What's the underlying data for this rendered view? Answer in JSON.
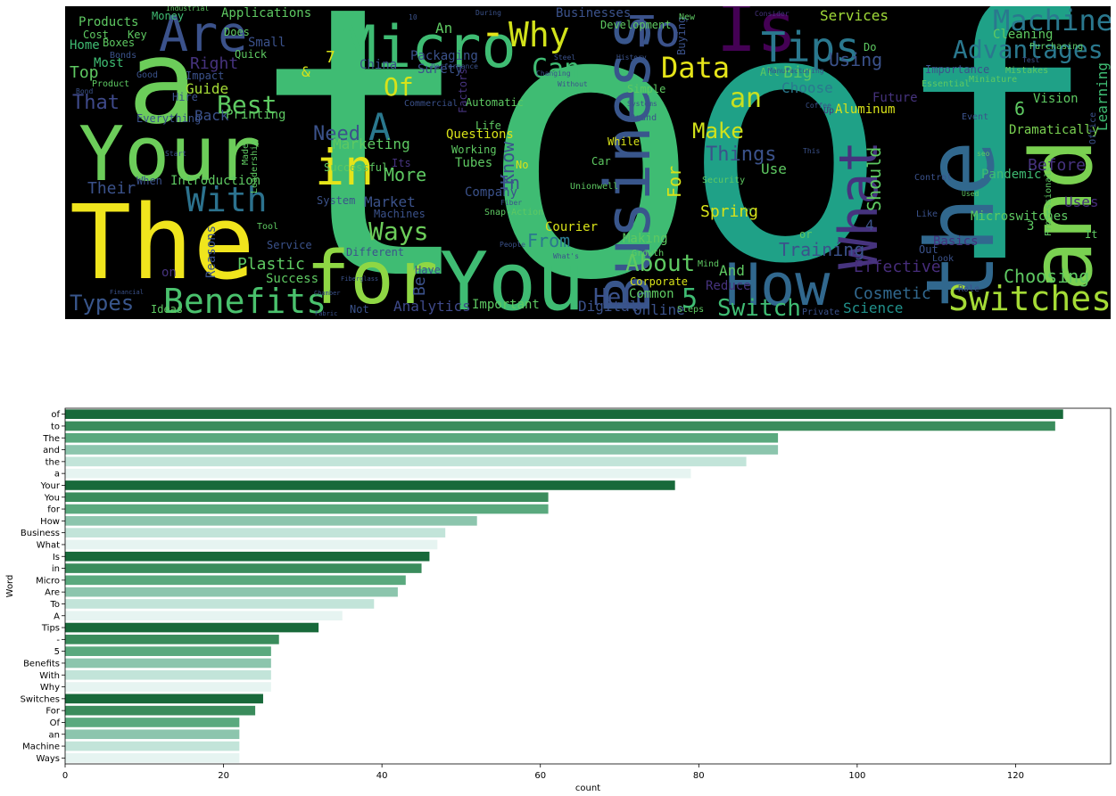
{
  "wordcloud": {
    "words": [
      {
        "text": "to",
        "color": "#3fbc73"
      },
      {
        "text": "of",
        "color": "#1fa187"
      },
      {
        "text": "The",
        "color": "#f0e51d"
      },
      {
        "text": "a",
        "color": "#6ccd5a"
      },
      {
        "text": "Your",
        "color": "#6ccd5a"
      },
      {
        "text": "and",
        "color": "#7ad151"
      },
      {
        "text": "the",
        "color": "#31688e"
      },
      {
        "text": "for",
        "color": "#8fd744"
      },
      {
        "text": "You",
        "color": "#3fbc73"
      },
      {
        "text": "How",
        "color": "#31688e"
      },
      {
        "text": "Business",
        "color": "#39568c"
      },
      {
        "text": "What",
        "color": "#46337e"
      },
      {
        "text": "Is",
        "color": "#440154"
      },
      {
        "text": "in",
        "color": "#e5e419"
      },
      {
        "text": "Micro",
        "color": "#3fbc73"
      },
      {
        "text": "Are",
        "color": "#3b528b"
      },
      {
        "text": "To",
        "color": "#3b528b"
      },
      {
        "text": "A",
        "color": "#2a788e"
      },
      {
        "text": "Tips",
        "color": "#2a788e"
      },
      {
        "text": "-",
        "color": "#e5e419"
      },
      {
        "text": "Benefits",
        "color": "#4ac16d"
      },
      {
        "text": "With",
        "color": "#2c728e"
      },
      {
        "text": "Why",
        "color": "#d2e21b"
      },
      {
        "text": "Switches",
        "color": "#a5db36"
      },
      {
        "text": "Machine",
        "color": "#2a788e"
      },
      {
        "text": "Advantages",
        "color": "#2a788e"
      },
      {
        "text": "Data",
        "color": "#e5e419"
      },
      {
        "text": "Can",
        "color": "#3fbc73"
      },
      {
        "text": "an",
        "color": "#c8e020"
      },
      {
        "text": "Best",
        "color": "#5ec962"
      },
      {
        "text": "Of",
        "color": "#d8e219"
      },
      {
        "text": "Need",
        "color": "#3b528b"
      },
      {
        "text": "Ways",
        "color": "#6ccd5a"
      },
      {
        "text": "Switch",
        "color": "#3fbc73"
      },
      {
        "text": "About",
        "color": "#5ec962"
      },
      {
        "text": "Help",
        "color": "#3b528b"
      },
      {
        "text": "Types",
        "color": "#39568c"
      },
      {
        "text": "Choosing",
        "color": "#5ec962"
      },
      {
        "text": "Training",
        "color": "#3b528b"
      },
      {
        "text": "Effective",
        "color": "#472d7b"
      },
      {
        "text": "Cosmetic",
        "color": "#31688e"
      },
      {
        "text": "Make",
        "color": "#d2e21b"
      },
      {
        "text": "Things",
        "color": "#3b528b"
      },
      {
        "text": "Should",
        "color": "#5ec962"
      },
      {
        "text": "Before",
        "color": "#46327e"
      },
      {
        "text": "Spring",
        "color": "#d8e219"
      },
      {
        "text": "More",
        "color": "#5ec962"
      },
      {
        "text": "Know",
        "color": "#3b528b"
      },
      {
        "text": "Marketing",
        "color": "#5ec962"
      },
      {
        "text": "From",
        "color": "#2a788e"
      },
      {
        "text": "Their",
        "color": "#3b528b"
      },
      {
        "text": "That",
        "color": "#3e4989"
      },
      {
        "text": "Services",
        "color": "#a0da39"
      },
      {
        "text": "Using",
        "color": "#3b528b"
      },
      {
        "text": "Choose",
        "color": "#2a788e"
      },
      {
        "text": "Science",
        "color": "#21918c"
      },
      {
        "text": "Plastic",
        "color": "#5ec962"
      },
      {
        "text": "Analytics",
        "color": "#3e4989"
      },
      {
        "text": "Digital",
        "color": "#3b528b"
      },
      {
        "text": "Online",
        "color": "#3b528b"
      },
      {
        "text": "Important",
        "color": "#5ec962"
      },
      {
        "text": "Common",
        "color": "#5ec962"
      },
      {
        "text": "Right",
        "color": "#46337e"
      },
      {
        "text": "Top",
        "color": "#5ec962"
      },
      {
        "text": "Guide",
        "color": "#a5db36"
      },
      {
        "text": "Back",
        "color": "#3b528b"
      },
      {
        "text": "Big",
        "color": "#5ec962"
      },
      {
        "text": "Learning",
        "color": "#3fbc73"
      },
      {
        "text": "Use",
        "color": "#5ec962"
      },
      {
        "text": "Uses",
        "color": "#472d7b"
      },
      {
        "text": "Company",
        "color": "#3b528b"
      },
      {
        "text": "Market",
        "color": "#3b528b"
      },
      {
        "text": "Tubes",
        "color": "#5ec962"
      },
      {
        "text": "Success",
        "color": "#5ec962"
      },
      {
        "text": "Making",
        "color": "#5ec962"
      },
      {
        "text": "Microswitches",
        "color": "#5ec962"
      },
      {
        "text": "Applications",
        "color": "#5ec962"
      },
      {
        "text": "Products",
        "color": "#5ec962"
      },
      {
        "text": "Packaging",
        "color": "#3b528b"
      },
      {
        "text": "Businesses",
        "color": "#3b528b"
      },
      {
        "text": "Aluminum",
        "color": "#d8e219"
      },
      {
        "text": "Dramatically",
        "color": "#7ad151"
      },
      {
        "text": "Pandemic",
        "color": "#3fbc73"
      },
      {
        "text": "Introduction",
        "color": "#5ec962"
      },
      {
        "text": "Questions",
        "color": "#d8e219"
      },
      {
        "text": "Vision",
        "color": "#5ec962"
      },
      {
        "text": "Cleaning",
        "color": "#5ec962"
      },
      {
        "text": "Reasons",
        "color": "#3b528b"
      },
      {
        "text": "Courier",
        "color": "#d8e219"
      },
      {
        "text": "Reduce",
        "color": "#46337e"
      },
      {
        "text": "Basics",
        "color": "#46337e"
      },
      {
        "text": "Printing",
        "color": "#5ec962"
      },
      {
        "text": "Everything",
        "color": "#3b528b"
      },
      {
        "text": "Money",
        "color": "#3fbc73"
      },
      {
        "text": "Home",
        "color": "#3fbc73"
      },
      {
        "text": "Boxes",
        "color": "#5ec962"
      },
      {
        "text": "Most",
        "color": "#3fbc73"
      },
      {
        "text": "Small",
        "color": "#3b528b"
      },
      {
        "text": "China",
        "color": "#3b528b"
      },
      {
        "text": "Surety",
        "color": "#3b528b"
      },
      {
        "text": "Bonds",
        "color": "#3b528b"
      },
      {
        "text": "Quick",
        "color": "#5ec962"
      },
      {
        "text": "Cost",
        "color": "#5ec962"
      },
      {
        "text": "Key",
        "color": "#5ec962"
      },
      {
        "text": "Hire",
        "color": "#3b528b"
      },
      {
        "text": "Impact",
        "color": "#3b528b"
      },
      {
        "text": "Product",
        "color": "#5ec962"
      },
      {
        "text": "Good",
        "color": "#3b528b"
      },
      {
        "text": "Bond",
        "color": "#3b528b"
      },
      {
        "text": "Industrial",
        "color": "#5ec962"
      },
      {
        "text": "Does",
        "color": "#5ec962"
      },
      {
        "text": "Factors",
        "color": "#46337e"
      },
      {
        "text": "Development",
        "color": "#5ec962"
      },
      {
        "text": "During",
        "color": "#3b528b"
      },
      {
        "text": "Steel",
        "color": "#3b528b"
      },
      {
        "text": "Changing",
        "color": "#3b528b"
      },
      {
        "text": "Performance",
        "color": "#3b528b"
      },
      {
        "text": "History",
        "color": "#3b528b"
      },
      {
        "text": "Simple",
        "color": "#5ec962"
      },
      {
        "text": "Systems",
        "color": "#3b528b"
      },
      {
        "text": "Growth",
        "color": "#5ec962"
      },
      {
        "text": "Corporate",
        "color": "#d8e219"
      },
      {
        "text": "Brand",
        "color": "#3b528b"
      },
      {
        "text": "Without",
        "color": "#3b528b"
      },
      {
        "text": "Commercial",
        "color": "#3b528b"
      },
      {
        "text": "Successful",
        "color": "#5ec962"
      },
      {
        "text": "Working",
        "color": "#5ec962"
      },
      {
        "text": "Life",
        "color": "#5ec962"
      },
      {
        "text": "Automatic",
        "color": "#5ec962"
      },
      {
        "text": "While",
        "color": "#d8e219"
      },
      {
        "text": "Car",
        "color": "#5ec962"
      },
      {
        "text": "Fiber",
        "color": "#3b528b"
      },
      {
        "text": "Unionwell",
        "color": "#5ec962"
      },
      {
        "text": "Snap-Action",
        "color": "#5ec962"
      },
      {
        "text": "Machines",
        "color": "#3b528b"
      },
      {
        "text": "System",
        "color": "#3b528b"
      },
      {
        "text": "Leadership",
        "color": "#5ec962"
      },
      {
        "text": "Made",
        "color": "#5ec962"
      },
      {
        "text": "When",
        "color": "#3b528b"
      },
      {
        "text": "Tool",
        "color": "#5ec962"
      },
      {
        "text": "Service",
        "color": "#3b528b"
      },
      {
        "text": "Different",
        "color": "#3b528b"
      },
      {
        "text": "Have",
        "color": "#3b528b"
      },
      {
        "text": "Not",
        "color": "#3b528b"
      },
      {
        "text": "Ideas",
        "color": "#5ec962"
      },
      {
        "text": "Mind",
        "color": "#5ec962"
      },
      {
        "text": "Steps",
        "color": "#5ec962"
      },
      {
        "text": "Private",
        "color": "#3b528b"
      },
      {
        "text": "Role",
        "color": "#3b528b"
      },
      {
        "text": "Look",
        "color": "#3b528b"
      },
      {
        "text": "Used",
        "color": "#5ec962"
      },
      {
        "text": "Out",
        "color": "#3b528b"
      },
      {
        "text": "Control",
        "color": "#3b528b"
      },
      {
        "text": "Event",
        "color": "#3b528b"
      },
      {
        "text": "Security",
        "color": "#5ec962"
      },
      {
        "text": "Future",
        "color": "#46337e"
      },
      {
        "text": "Importance",
        "color": "#3b528b"
      },
      {
        "text": "Mistakes",
        "color": "#5ec962"
      },
      {
        "text": "Miniature",
        "color": "#5ec962"
      },
      {
        "text": "Essential",
        "color": "#5ec962"
      },
      {
        "text": "Buying",
        "color": "#3b528b"
      },
      {
        "text": "New",
        "color": "#5ec962"
      },
      {
        "text": "Consider",
        "color": "#46337e"
      },
      {
        "text": "Purchasing",
        "color": "#5ec962"
      },
      {
        "text": "Test",
        "color": "#3b528b"
      },
      {
        "text": "Coffee",
        "color": "#3b528b"
      },
      {
        "text": "Professionals",
        "color": "#5ec962"
      },
      {
        "text": "Office",
        "color": "#3b528b"
      },
      {
        "text": "Like",
        "color": "#3b528b"
      },
      {
        "text": "Do",
        "color": "#5ec962"
      },
      {
        "text": "Up",
        "color": "#46337e"
      },
      {
        "text": "All",
        "color": "#5ec962"
      },
      {
        "text": "It",
        "color": "#5ec962"
      },
      {
        "text": "Be",
        "color": "#3b528b"
      },
      {
        "text": "on",
        "color": "#46337e"
      },
      {
        "text": "No",
        "color": "#d8e219"
      },
      {
        "text": "Its",
        "color": "#46337e"
      },
      {
        "text": "And",
        "color": "#5ec962"
      },
      {
        "text": "or",
        "color": "#5ec962"
      },
      {
        "text": "by",
        "color": "#5ec962"
      },
      {
        "text": "People",
        "color": "#3b528b"
      },
      {
        "text": "Start",
        "color": "#3b528b"
      },
      {
        "text": "What's",
        "color": "#3b528b"
      },
      {
        "text": "&",
        "color": "#d8e219"
      },
      {
        "text": "7",
        "color": "#d8e219"
      },
      {
        "text": "5",
        "color": "#3fbc73"
      },
      {
        "text": "6",
        "color": "#5ec962"
      },
      {
        "text": "4",
        "color": "#3b528b"
      },
      {
        "text": "3",
        "color": "#5ec962"
      },
      {
        "text": "10",
        "color": "#3b528b"
      },
      {
        "text": "For",
        "color": "#d8e219"
      },
      {
        "text": "In",
        "color": "#3b528b"
      },
      {
        "text": "An",
        "color": "#5ec962"
      },
      {
        "text": "This",
        "color": "#3b528b"
      },
      {
        "text": "Fabric",
        "color": "#3b528b"
      },
      {
        "text": "Chamber",
        "color": "#3b528b"
      },
      {
        "text": "Fiberglass",
        "color": "#3b528b"
      },
      {
        "text": "Manufacturing",
        "color": "#3b528b"
      },
      {
        "text": "Financial",
        "color": "#3b528b"
      },
      {
        "text": "seo",
        "color": "#5ec962"
      }
    ]
  },
  "chart_data": {
    "type": "bar",
    "orientation": "horizontal",
    "categories": [
      "of",
      "to",
      "The",
      "and",
      "the",
      "a",
      "Your",
      "You",
      "for",
      "How",
      "Business",
      "What",
      "Is",
      "in",
      "Micro",
      "Are",
      "To",
      "A",
      "Tips",
      "-",
      "5",
      "Benefits",
      "With",
      "Why",
      "Switches",
      "For",
      "Of",
      "an",
      "Machine",
      "Ways"
    ],
    "values": [
      126,
      125,
      90,
      90,
      86,
      79,
      77,
      61,
      61,
      52,
      48,
      47,
      46,
      45,
      43,
      42,
      39,
      35,
      32,
      27,
      26,
      26,
      26,
      26,
      25,
      24,
      22,
      22,
      22,
      22
    ],
    "colors": [
      "#18693a",
      "#3a8c5c",
      "#5aa97e",
      "#8cc5ad",
      "#c2e4d9",
      "#e6f4f1"
    ],
    "xlabel": "count",
    "ylabel": "Word",
    "xlim": [
      0,
      132
    ],
    "xticks": [
      0,
      20,
      40,
      60,
      80,
      100,
      120
    ],
    "grid": false,
    "legend": "none"
  }
}
